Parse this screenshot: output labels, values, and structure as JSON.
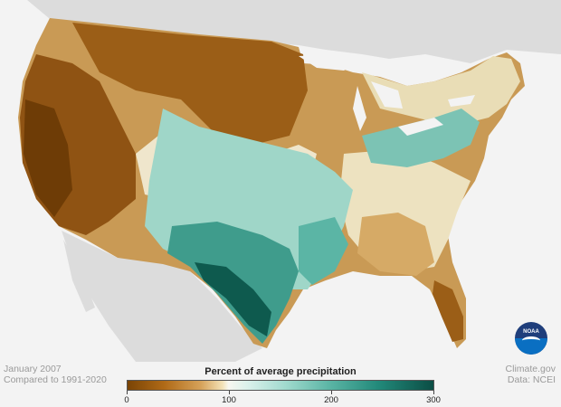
{
  "map": {
    "period": "January 2007",
    "baseline": "Compared to 1991-2020",
    "credit_source": "Climate.gov",
    "credit_data": "Data: NCEI",
    "logo_text": "NOAA"
  },
  "legend": {
    "title": "Percent of average precipitation",
    "ticks": [
      "0",
      "100",
      "200",
      "300"
    ],
    "tick_values": [
      0,
      100,
      200,
      300
    ],
    "range": [
      0,
      300
    ],
    "colors": {
      "very_dry": "#7a4405",
      "dry": "#d6a25a",
      "near_normal": "#f7f7f0",
      "wet": "#5bb5a5",
      "very_wet": "#0b4e45"
    }
  }
}
